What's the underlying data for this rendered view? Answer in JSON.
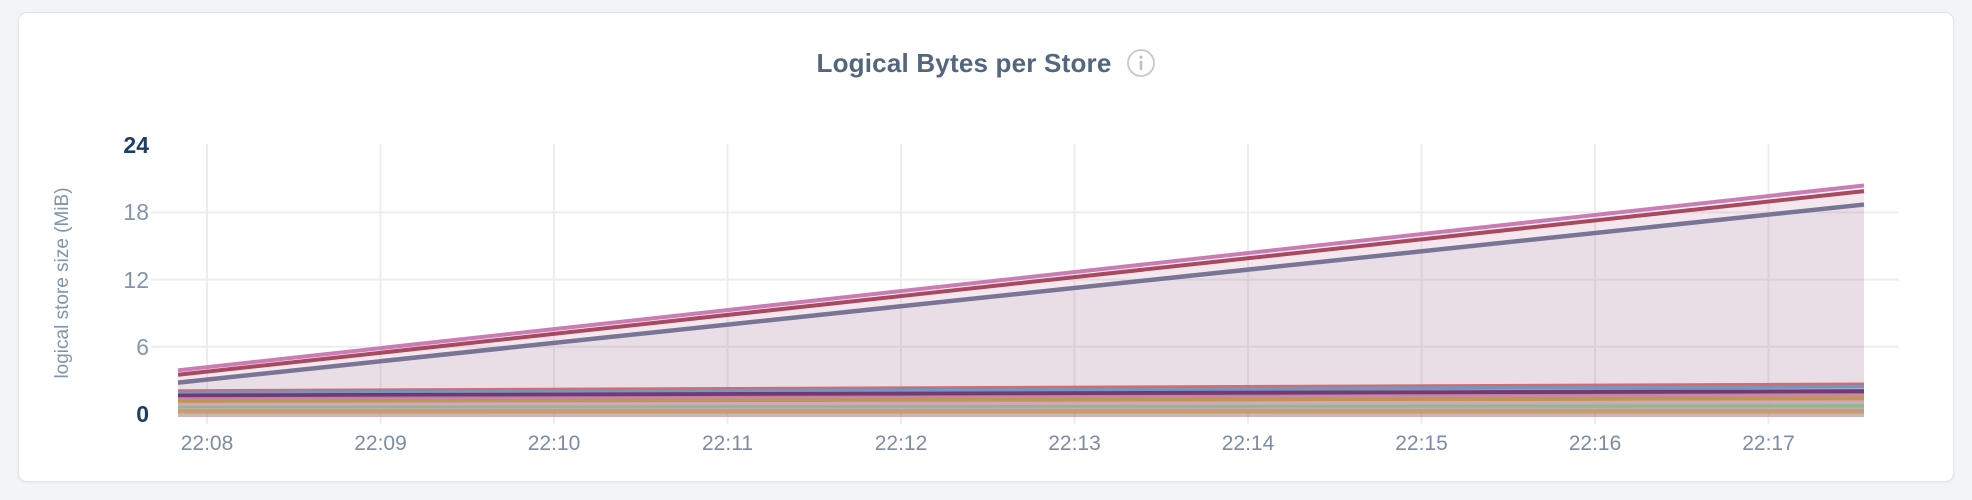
{
  "header": {
    "title": "Logical Bytes per Store",
    "info_icon": "info"
  },
  "colors": {
    "page_background": "#F2F4F7",
    "card_background": "#FFFFFF",
    "card_border": "#E3E4E8",
    "title_text": "#54657E",
    "tick_text": "#7B8CA4",
    "bold_tick_text": "#1D3E66",
    "gridline": "#EDEDEF",
    "info_icon": "#C4C9D1"
  },
  "chart_data": {
    "type": "area",
    "title": "Logical Bytes per Store",
    "xlabel": "",
    "ylabel": "logical store size (MiB)",
    "ylim": [
      0,
      24
    ],
    "yticks": [
      0,
      6,
      12,
      18,
      24
    ],
    "bold_ytick_values": [
      0,
      24
    ],
    "gridline_yticks": [
      6,
      12,
      18
    ],
    "xticks": [
      "22:08",
      "22:09",
      "22:10",
      "22:11",
      "22:12",
      "22:13",
      "22:14",
      "22:15",
      "22:16",
      "22:17"
    ],
    "grid": true,
    "legend": "none",
    "note": "12 unlabeled per-store series; each follows a straight linear trend from window start (~22:07:50) to window end (~22:17:30); values in MiB",
    "series": [
      {
        "id": "store-1",
        "color": "#C572AE",
        "start_mib": 3.9,
        "end_mib": 20.4,
        "stroke_width": 4
      },
      {
        "id": "store-2",
        "color": "#A23B52",
        "start_mib": 3.5,
        "end_mib": 19.9,
        "stroke_width": 4
      },
      {
        "id": "store-3",
        "color": "#6F6B8E",
        "start_mib": 2.8,
        "end_mib": 18.7,
        "stroke_width": 4.5
      },
      {
        "id": "store-4",
        "color": "#D96159",
        "start_mib": 2.1,
        "end_mib": 2.7,
        "stroke_width": 2.5
      },
      {
        "id": "store-5",
        "color": "#6F8FBF",
        "start_mib": 1.9,
        "end_mib": 2.45,
        "stroke_width": 4
      },
      {
        "id": "store-6",
        "color": "#6B2E68",
        "start_mib": 1.6,
        "end_mib": 2.0,
        "stroke_width": 5
      },
      {
        "id": "store-7",
        "color": "#C783A9",
        "start_mib": 1.35,
        "end_mib": 1.7,
        "stroke_width": 3.5
      },
      {
        "id": "store-8",
        "color": "#BD9443",
        "start_mib": 1.1,
        "end_mib": 1.4,
        "stroke_width": 4
      },
      {
        "id": "store-9",
        "color": "#D2A5C1",
        "start_mib": 0.85,
        "end_mib": 1.05,
        "stroke_width": 3.5
      },
      {
        "id": "store-10",
        "color": "#84BB84",
        "start_mib": 0.55,
        "end_mib": 0.7,
        "stroke_width": 4
      },
      {
        "id": "store-11",
        "color": "#CFA6BB",
        "start_mib": 0.4,
        "end_mib": 0.45,
        "stroke_width": 3
      },
      {
        "id": "store-12",
        "color": "#C79C66",
        "start_mib": 0.25,
        "end_mib": 0.25,
        "stroke_width": 4.5
      }
    ],
    "fill_opacity": 0.07
  }
}
